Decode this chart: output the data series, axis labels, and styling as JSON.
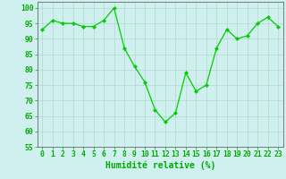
{
  "x": [
    0,
    1,
    2,
    3,
    4,
    5,
    6,
    7,
    8,
    9,
    10,
    11,
    12,
    13,
    14,
    15,
    16,
    17,
    18,
    19,
    20,
    21,
    22,
    23
  ],
  "y": [
    93,
    96,
    95,
    95,
    94,
    94,
    96,
    100,
    87,
    81,
    76,
    67,
    63,
    66,
    79,
    73,
    75,
    87,
    93,
    90,
    91,
    95,
    97,
    94
  ],
  "xlabel": "Humidité relative (%)",
  "ylim": [
    55,
    102
  ],
  "xlim": [
    -0.5,
    23.5
  ],
  "yticks": [
    55,
    60,
    65,
    70,
    75,
    80,
    85,
    90,
    95,
    100
  ],
  "xticks": [
    0,
    1,
    2,
    3,
    4,
    5,
    6,
    7,
    8,
    9,
    10,
    11,
    12,
    13,
    14,
    15,
    16,
    17,
    18,
    19,
    20,
    21,
    22,
    23
  ],
  "line_color": "#00cc00",
  "marker_color": "#00cc00",
  "bg_color": "#d0f0f0",
  "grid_color": "#b0d8cc",
  "axis_color": "#666666",
  "xlabel_color": "#00aa00",
  "xlabel_fontsize": 7,
  "tick_fontsize": 5.8,
  "tick_color": "#00aa00"
}
